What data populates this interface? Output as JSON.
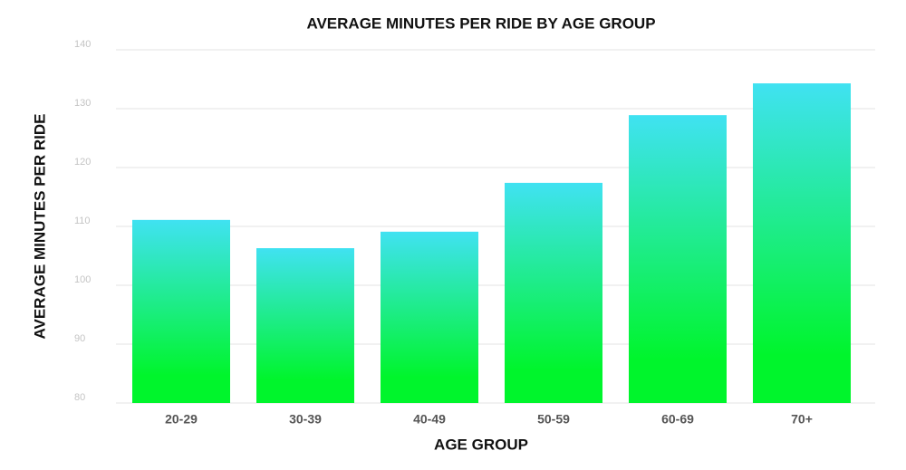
{
  "chart_data": {
    "type": "bar",
    "title": "AVERAGE MINUTES PER RIDE BY AGE GROUP",
    "x_label": "AGE GROUP",
    "y_label": "AVERAGE MINUTES PER RIDE",
    "categories": [
      "20-29",
      "30-39",
      "40-49",
      "50-59",
      "60-69",
      "70+"
    ],
    "values": [
      111.1,
      106.3,
      109.1,
      117.4,
      128.9,
      134.3
    ],
    "gradient": {
      "top": "#40e2f2",
      "bottom": "#00f52c"
    },
    "ylim": [
      80,
      140
    ],
    "yticks": [
      80,
      90,
      100,
      110,
      120,
      130,
      140
    ],
    "grid": true
  }
}
